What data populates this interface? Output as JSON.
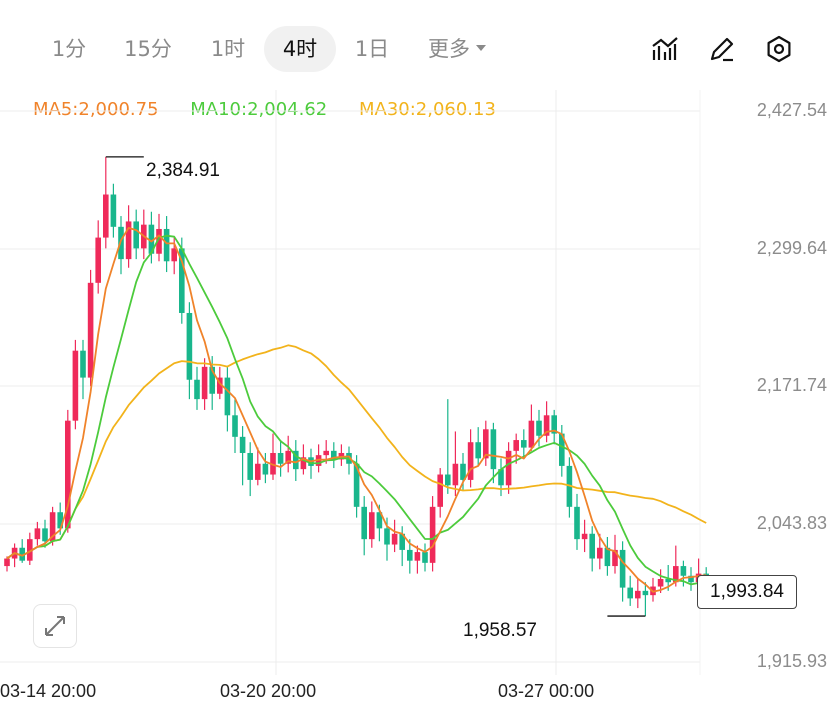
{
  "tabs": [
    {
      "label": "1分",
      "active": false
    },
    {
      "label": "15分",
      "active": false
    },
    {
      "label": "1时",
      "active": false
    },
    {
      "label": "4时",
      "active": true
    },
    {
      "label": "1日",
      "active": false
    },
    {
      "label": "更多",
      "active": false
    }
  ],
  "tools": [
    "draw-line-icon",
    "pen-icon",
    "settings-icon"
  ],
  "ma": [
    {
      "label": "MA5:2,000.75",
      "color": "#f0832a"
    },
    {
      "label": "MA10:2,004.62",
      "color": "#4ccb3c"
    },
    {
      "label": "MA30:2,060.13",
      "color": "#f2b31b"
    }
  ],
  "current_price": "1,993.84",
  "annotations": {
    "high": "2,384.91",
    "low": "1,958.57"
  },
  "colors": {
    "up": "#ef2a5a",
    "down": "#19b68c",
    "grid": "#ececec"
  },
  "chart_data": {
    "type": "candlestick",
    "y_ticks": [
      "2,427.54",
      "2,299.64",
      "2,171.74",
      "2,043.83",
      "1,915.93"
    ],
    "ylim": [
      1915.93,
      2427.54
    ],
    "x_ticks": [
      "03-14 20:00",
      "03-20 20:00",
      "03-27 00:00"
    ],
    "interval": "4h",
    "high": 2384.91,
    "low": 1958.57,
    "last": 1993.84,
    "candles": [
      [
        2005,
        2012,
        2014,
        2000
      ],
      [
        2012,
        2022,
        2026,
        2004
      ],
      [
        2022,
        2010,
        2030,
        2008
      ],
      [
        2010,
        2030,
        2036,
        2006
      ],
      [
        2030,
        2040,
        2046,
        2024
      ],
      [
        2040,
        2028,
        2048,
        2022
      ],
      [
        2028,
        2055,
        2060,
        2024
      ],
      [
        2055,
        2040,
        2064,
        2034
      ],
      [
        2040,
        2140,
        2150,
        2036
      ],
      [
        2140,
        2205,
        2215,
        2132
      ],
      [
        2205,
        2180,
        2215,
        2160
      ],
      [
        2180,
        2268,
        2280,
        2172
      ],
      [
        2268,
        2310,
        2326,
        2258
      ],
      [
        2310,
        2350,
        2384.91,
        2300
      ],
      [
        2350,
        2320,
        2360,
        2310
      ],
      [
        2320,
        2290,
        2330,
        2276
      ],
      [
        2290,
        2325,
        2340,
        2282
      ],
      [
        2325,
        2300,
        2336,
        2290
      ],
      [
        2300,
        2322,
        2336,
        2290
      ],
      [
        2322,
        2295,
        2334,
        2286
      ],
      [
        2295,
        2318,
        2332,
        2288
      ],
      [
        2318,
        2288,
        2330,
        2278
      ],
      [
        2288,
        2300,
        2310,
        2276
      ],
      [
        2300,
        2240,
        2310,
        2230
      ],
      [
        2240,
        2178,
        2250,
        2160
      ],
      [
        2178,
        2160,
        2190,
        2150
      ],
      [
        2160,
        2190,
        2198,
        2150
      ],
      [
        2190,
        2165,
        2200,
        2150
      ],
      [
        2165,
        2180,
        2190,
        2160
      ],
      [
        2180,
        2145,
        2190,
        2130
      ],
      [
        2145,
        2125,
        2160,
        2110
      ],
      [
        2125,
        2110,
        2135,
        2080
      ],
      [
        2110,
        2085,
        2120,
        2070
      ],
      [
        2085,
        2100,
        2115,
        2080
      ],
      [
        2100,
        2090,
        2110,
        2082
      ],
      [
        2090,
        2110,
        2128,
        2085
      ],
      [
        2110,
        2100,
        2122,
        2088
      ],
      [
        2100,
        2112,
        2126,
        2092
      ],
      [
        2112,
        2095,
        2122,
        2084
      ],
      [
        2095,
        2106,
        2118,
        2090
      ],
      [
        2106,
        2098,
        2114,
        2086
      ],
      [
        2098,
        2108,
        2118,
        2092
      ],
      [
        2108,
        2112,
        2122,
        2100
      ],
      [
        2112,
        2104,
        2120,
        2096
      ],
      [
        2104,
        2110,
        2118,
        2098
      ],
      [
        2110,
        2100,
        2116,
        2090
      ],
      [
        2100,
        2060,
        2108,
        2050
      ],
      [
        2060,
        2030,
        2070,
        2015
      ],
      [
        2030,
        2055,
        2065,
        2022
      ],
      [
        2055,
        2040,
        2062,
        2028
      ],
      [
        2040,
        2025,
        2050,
        2010
      ],
      [
        2025,
        2035,
        2048,
        2018
      ],
      [
        2035,
        2020,
        2042,
        2005
      ],
      [
        2020,
        2010,
        2030,
        1998
      ],
      [
        2010,
        2018,
        2024,
        1998
      ],
      [
        2018,
        2008,
        2026,
        2000
      ],
      [
        2008,
        2060,
        2070,
        2000
      ],
      [
        2060,
        2090,
        2096,
        2050
      ],
      [
        2090,
        2080,
        2160,
        2072
      ],
      [
        2080,
        2100,
        2130,
        2070
      ],
      [
        2100,
        2085,
        2110,
        2075
      ],
      [
        2085,
        2120,
        2132,
        2078
      ],
      [
        2120,
        2105,
        2134,
        2098
      ],
      [
        2105,
        2132,
        2140,
        2098
      ],
      [
        2132,
        2095,
        2138,
        2082
      ],
      [
        2095,
        2080,
        2105,
        2070
      ],
      [
        2080,
        2112,
        2120,
        2072
      ],
      [
        2112,
        2122,
        2128,
        2100
      ],
      [
        2122,
        2115,
        2132,
        2106
      ],
      [
        2115,
        2140,
        2155,
        2112
      ],
      [
        2140,
        2126,
        2150,
        2116
      ],
      [
        2126,
        2145,
        2158,
        2120
      ],
      [
        2145,
        2128,
        2150,
        2118
      ],
      [
        2128,
        2098,
        2136,
        2088
      ],
      [
        2098,
        2060,
        2106,
        2050
      ],
      [
        2060,
        2030,
        2072,
        2020
      ],
      [
        2030,
        2035,
        2048,
        2018
      ],
      [
        2035,
        2012,
        2042,
        2000
      ],
      [
        2012,
        2022,
        2035,
        2002
      ],
      [
        2022,
        2005,
        2032,
        1996
      ],
      [
        2005,
        2020,
        2034,
        1998
      ],
      [
        2020,
        1985,
        2028,
        1972
      ],
      [
        1985,
        1975,
        1996,
        1968
      ],
      [
        1975,
        1982,
        1994,
        1966
      ],
      [
        1982,
        1978,
        1990,
        1958.57
      ],
      [
        1978,
        1986,
        1994,
        1972
      ],
      [
        1986,
        1993,
        2002,
        1980
      ],
      [
        1993,
        1990,
        2006,
        1982
      ],
      [
        1990,
        2005,
        2024,
        1986
      ],
      [
        2005,
        1996,
        2010,
        1986
      ],
      [
        1996,
        1990,
        2004,
        1982
      ],
      [
        1990,
        1998,
        2012,
        1984
      ],
      [
        1998,
        1993.84,
        2004,
        1988
      ]
    ]
  }
}
